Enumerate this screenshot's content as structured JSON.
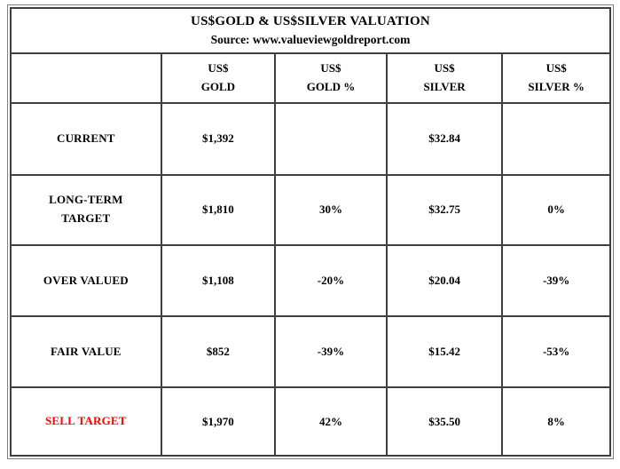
{
  "table": {
    "title": "US$GOLD & US$SILVER VALUATION",
    "source": "Source: www.valueviewgoldreport.com",
    "columns": [
      {
        "line1": "",
        "line2": ""
      },
      {
        "line1": "US$",
        "line2": "GOLD"
      },
      {
        "line1": "US$",
        "line2": "GOLD %"
      },
      {
        "line1": "US$",
        "line2": "SILVER"
      },
      {
        "line1": "US$",
        "line2": "SILVER %"
      }
    ],
    "rows": [
      {
        "label": "CURRENT",
        "values": [
          "$1,392",
          "",
          "$32.84",
          ""
        ]
      },
      {
        "label": "LONG-TERM\nTARGET",
        "values": [
          "$1,810",
          "30%",
          "$32.75",
          "0%"
        ]
      },
      {
        "label": "OVER VALUED",
        "values": [
          "$1,108",
          "-20%",
          "$20.04",
          "-39%"
        ]
      },
      {
        "label": "FAIR VALUE",
        "values": [
          "$852",
          "-39%",
          "$15.42",
          "-53%"
        ]
      },
      {
        "label": "SELL TARGET",
        "values": [
          "$1,970",
          "42%",
          "$35.50",
          "8%"
        ],
        "label_style": "color:#fe0000",
        "label_color": "#fe0000"
      }
    ]
  },
  "colors": {
    "text": "#000000",
    "border": "#3f3f3f",
    "sell_target_label": "#fe0000"
  }
}
